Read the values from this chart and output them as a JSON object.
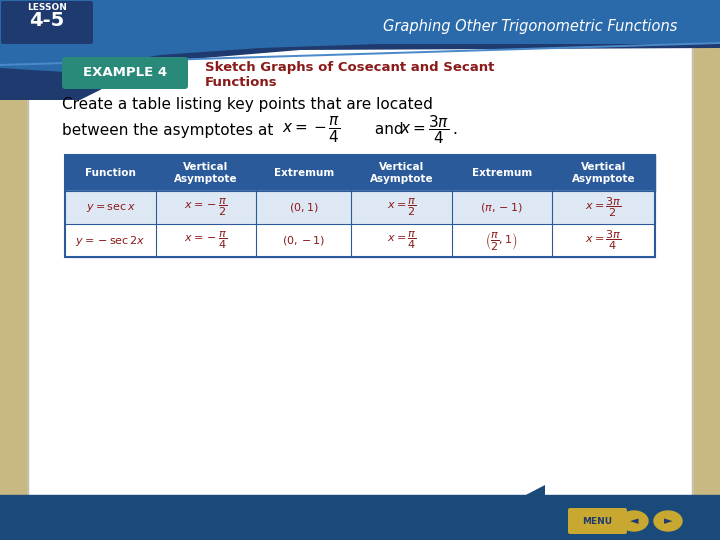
{
  "bg_color": "#c8b882",
  "slide_bg": "#ffffff",
  "top_gradient_dark": "#1a3a6a",
  "top_gradient_mid": "#2a5a9a",
  "lesson_label": "LESSON",
  "lesson_number": "4-5",
  "top_bar_text": "Graphing Other Trigonometric Functions",
  "example_box_color": "#2a8a7a",
  "example_label": "EXAMPLE 4",
  "example_title_line1": "Sketch Graphs of Cosecant and Secant",
  "example_title_line2": "Functions",
  "example_title_color": "#8b1a1a",
  "body_line1": "Create a table listing key points that are located",
  "body_line2": "between the asymptotes at ",
  "table_header_bg": "#2a5a9a",
  "table_header_color": "#ffffff",
  "table_row1_bg": "#dde8f4",
  "table_row2_bg": "#ffffff",
  "table_border_color": "#2a5a9a",
  "table_text_color": "#8b1a1a",
  "headers": [
    "Function",
    "Vertical\nAsymptote",
    "Extremum",
    "Vertical\nAsymptote",
    "Extremum",
    "Vertical\nAsymptote"
  ],
  "bottom_bar_color": "#1a4a7a",
  "menu_btn_color": "#c8a830",
  "nav_btn_color": "#c8a830"
}
